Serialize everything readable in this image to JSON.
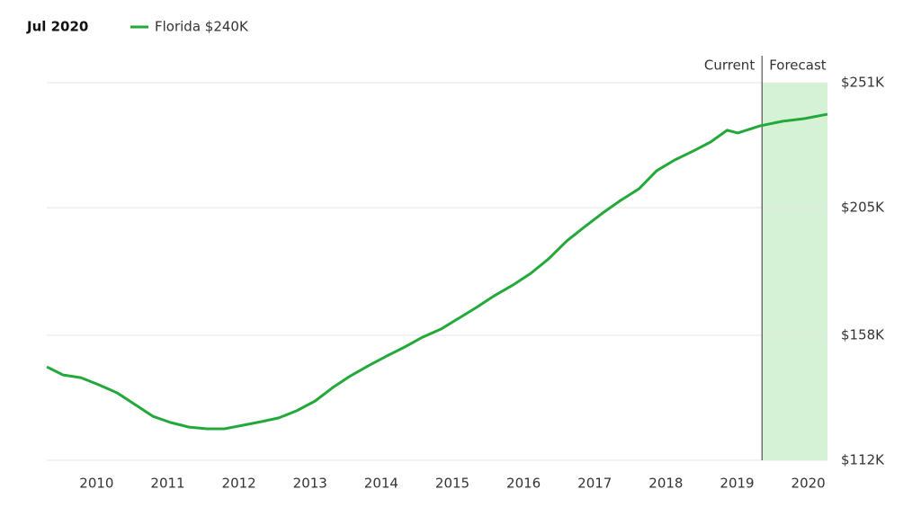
{
  "chart_data": {
    "type": "line",
    "date_label": "Jul 2020",
    "x": [
      2009.65,
      2009.88,
      2010.13,
      2010.38,
      2010.64,
      2010.89,
      2011.14,
      2011.39,
      2011.65,
      2011.9,
      2012.15,
      2012.41,
      2012.66,
      2012.91,
      2013.16,
      2013.42,
      2013.67,
      2013.92,
      2014.17,
      2014.43,
      2014.68,
      2014.93,
      2015.19,
      2015.44,
      2015.69,
      2015.94,
      2016.2,
      2016.45,
      2016.7,
      2016.96,
      2017.21,
      2017.46,
      2017.71,
      2017.97,
      2018.22,
      2018.47,
      2018.73,
      2018.98,
      2019.21,
      2019.36,
      2019.67,
      2019.99,
      2020.3,
      2020.62
    ],
    "series": [
      {
        "name": "Florida $240K",
        "color": "#22a93a",
        "values": [
          146.4,
          143.4,
          142.4,
          139.8,
          136.8,
          132.5,
          128.2,
          125.9,
          124.2,
          123.6,
          123.6,
          124.9,
          126.2,
          127.6,
          130.2,
          133.8,
          138.8,
          143.1,
          146.8,
          150.4,
          153.7,
          157.3,
          160.3,
          164.3,
          168.3,
          172.6,
          176.5,
          180.8,
          186.1,
          192.8,
          198.0,
          203.0,
          207.6,
          211.9,
          218.6,
          222.5,
          225.8,
          229.2,
          233.5,
          232.5,
          235.1,
          236.8,
          237.8,
          239.4
        ]
      }
    ],
    "xlim": [
      2009.65,
      2020.62
    ],
    "xticks": [
      2010,
      2011,
      2012,
      2013,
      2014,
      2015,
      2016,
      2017,
      2018,
      2019,
      2020
    ],
    "ylim": [
      112,
      251
    ],
    "yticks": [
      {
        "value": 112,
        "label": "$112K"
      },
      {
        "value": 158,
        "label": "$158K"
      },
      {
        "value": 205,
        "label": "$205K"
      },
      {
        "value": 251,
        "label": "$251K"
      }
    ],
    "grid": true,
    "forecast": {
      "start": 2019.7,
      "current_label": "Current",
      "forecast_label": "Forecast",
      "color": "#d6f2d6"
    }
  }
}
